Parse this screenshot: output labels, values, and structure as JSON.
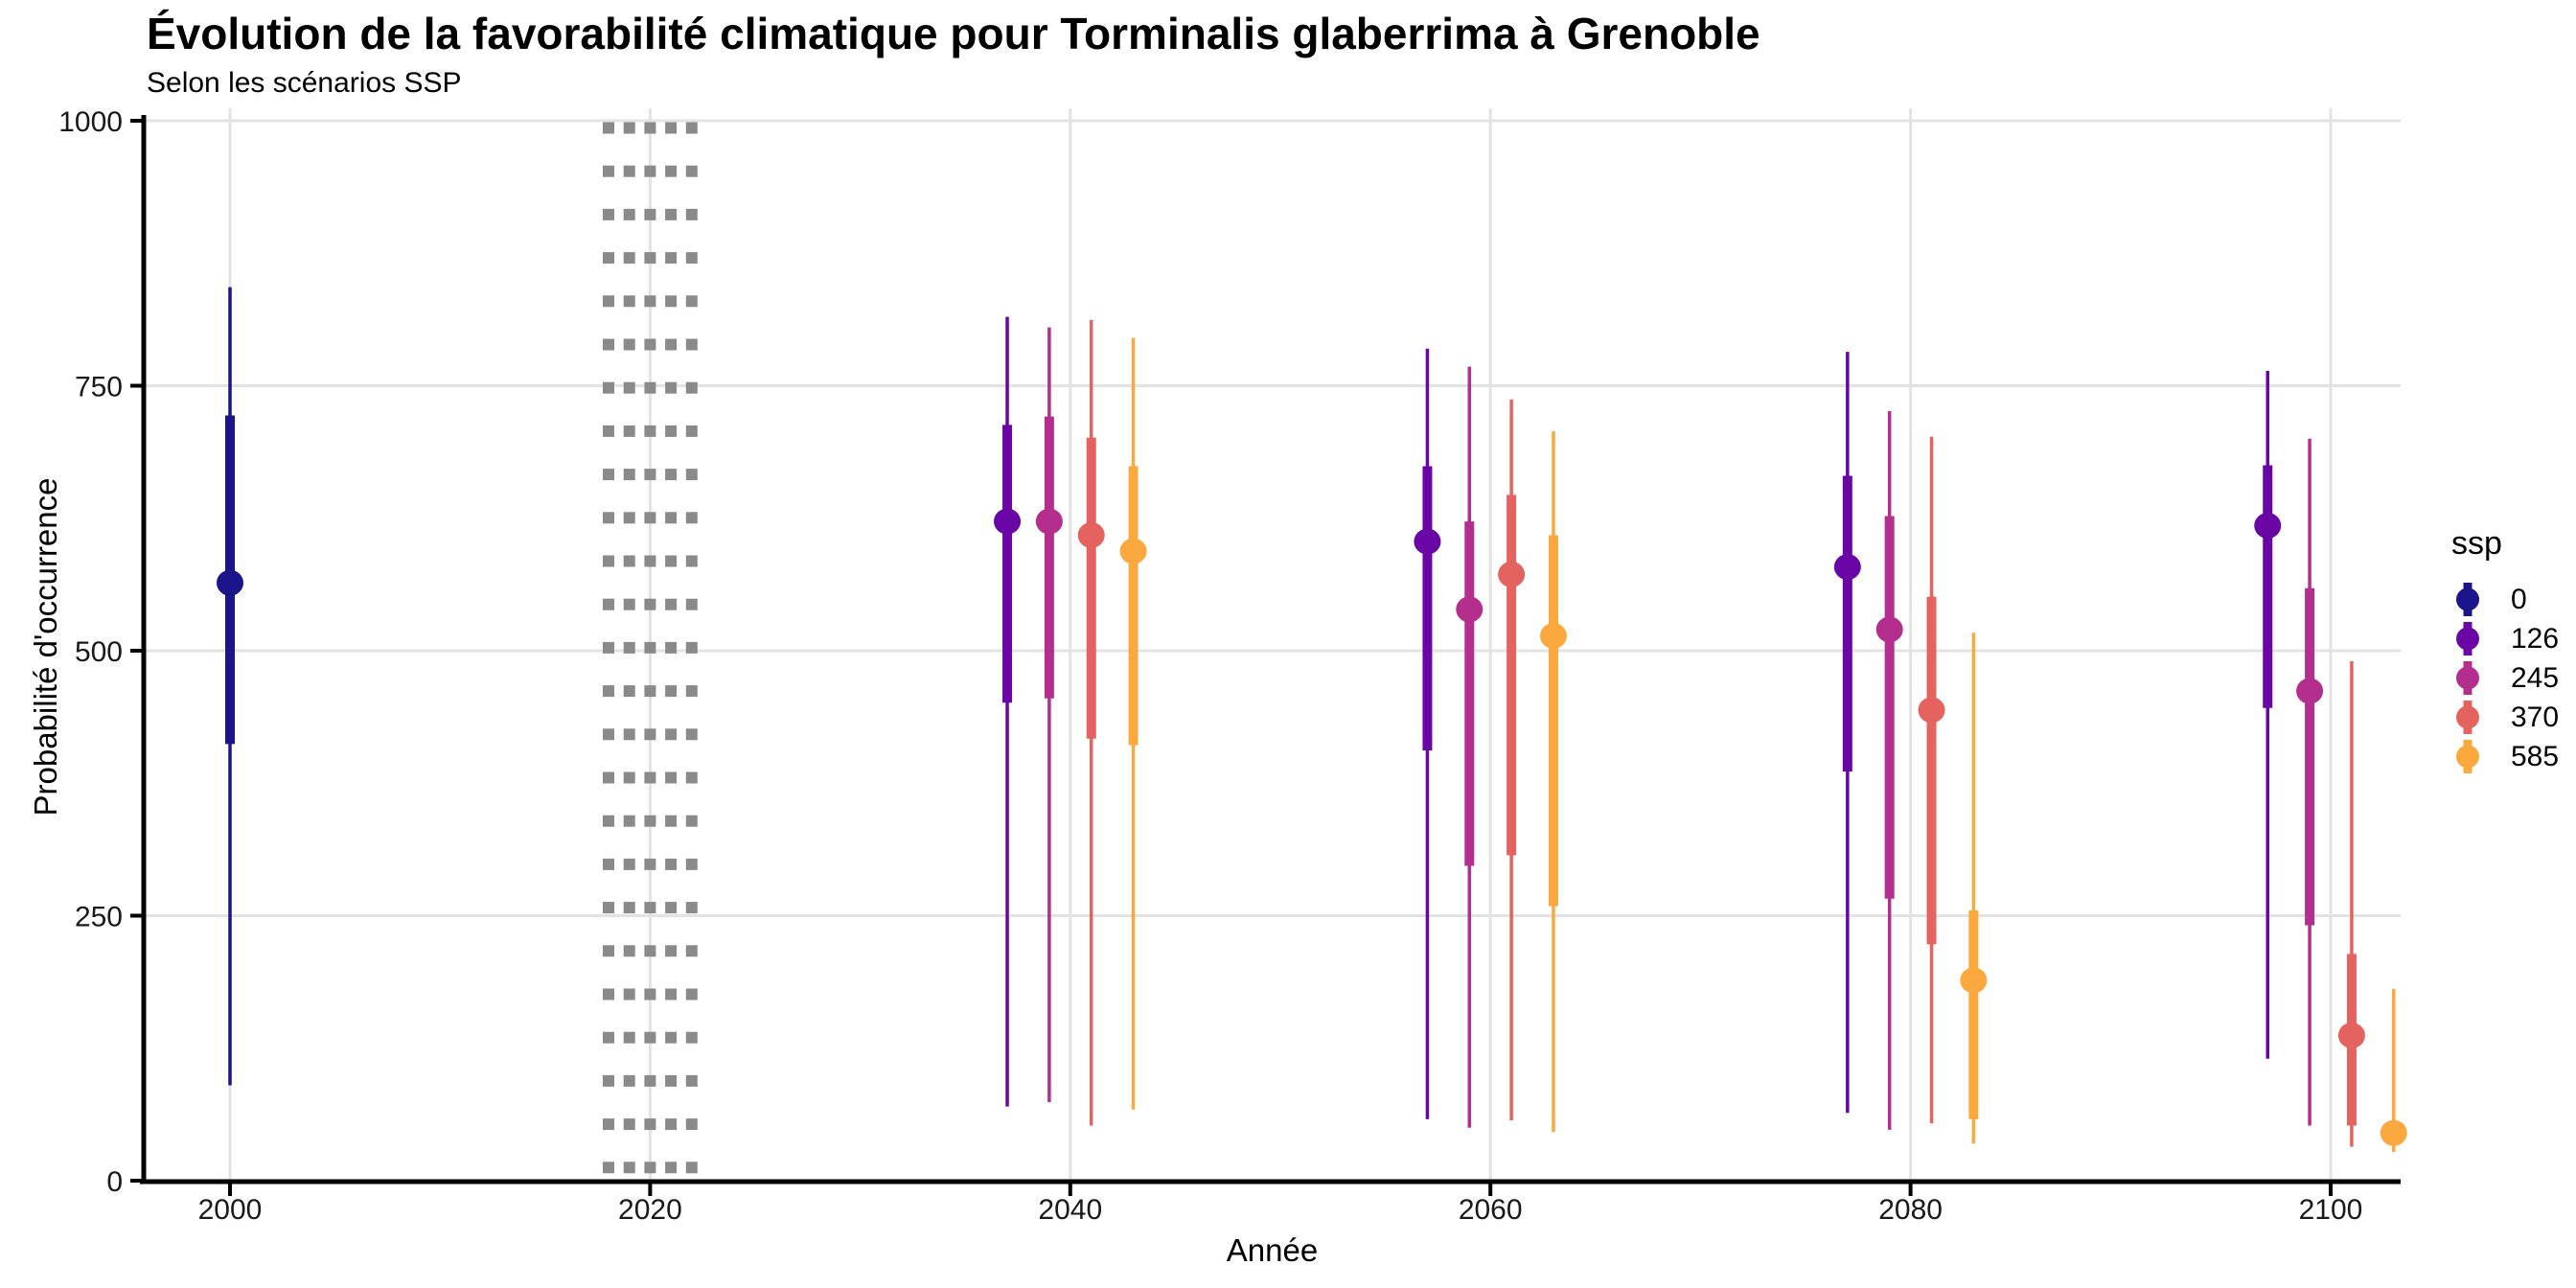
{
  "header": {
    "title": "Évolution de la favorabilité climatique pour Torminalis glaberrima à Grenoble",
    "subtitle": "Selon les scénarios SSP"
  },
  "axes": {
    "x": {
      "label": "Année",
      "ticks": [
        "2000",
        "2020",
        "2040",
        "2060",
        "2080",
        "2100"
      ]
    },
    "y": {
      "label": "Probabilité d'occurrence",
      "ticks": [
        "0",
        "250",
        "500",
        "750",
        "1000"
      ]
    }
  },
  "legend": {
    "title": "ssp",
    "entries": [
      {
        "label": "0",
        "color": "#1B148B"
      },
      {
        "label": "126",
        "color": "#6A06A6"
      },
      {
        "label": "245",
        "color": "#B42E8D"
      },
      {
        "label": "370",
        "color": "#E4635F"
      },
      {
        "label": "585",
        "color": "#FBA93F"
      }
    ]
  },
  "chart_data": {
    "type": "pointrange",
    "title": "Évolution de la favorabilité climatique pour Torminalis glaberrima à Grenoble",
    "subtitle": "Selon les scénarios SSP",
    "xlabel": "Année",
    "ylabel": "Probabilité d'occurrence",
    "ylim": [
      0,
      1000
    ],
    "xlim": [
      1996,
      2103
    ],
    "x_ticks": [
      2000,
      2020,
      2040,
      2060,
      2080,
      2100
    ],
    "y_ticks": [
      0,
      250,
      500,
      750,
      1000
    ],
    "grid": true,
    "gridline_color": "#E3E3E3",
    "legend_position": "right",
    "reference_band": {
      "x_center": 2020,
      "x_start": 2018,
      "x_end": 2022,
      "style": "dotted-squares",
      "color": "#8A8A8A"
    },
    "series": [
      {
        "name": "0",
        "color": "#1B148B",
        "points": [
          {
            "x": 2000,
            "y": 564,
            "inner": [
              412,
              722
            ],
            "outer": [
              90,
              843
            ]
          }
        ]
      },
      {
        "name": "126",
        "color": "#6A06A6",
        "points": [
          {
            "x": 2037,
            "y": 622,
            "inner": [
              451,
              713
            ],
            "outer": [
              70,
              815
            ]
          },
          {
            "x": 2057,
            "y": 603,
            "inner": [
              406,
              674
            ],
            "outer": [
              58,
              785
            ]
          },
          {
            "x": 2077,
            "y": 579,
            "inner": [
              386,
              665
            ],
            "outer": [
              64,
              782
            ]
          },
          {
            "x": 2097,
            "y": 618,
            "inner": [
              446,
              675
            ],
            "outer": [
              115,
              764
            ]
          }
        ]
      },
      {
        "name": "245",
        "color": "#B42E8D",
        "points": [
          {
            "x": 2039,
            "y": 622,
            "inner": [
              455,
              721
            ],
            "outer": [
              74,
              805
            ]
          },
          {
            "x": 2059,
            "y": 539,
            "inner": [
              297,
              622
            ],
            "outer": [
              50,
              768
            ]
          },
          {
            "x": 2079,
            "y": 520,
            "inner": [
              266,
              627
            ],
            "outer": [
              48,
              726
            ]
          },
          {
            "x": 2099,
            "y": 462,
            "inner": [
              241,
              559
            ],
            "outer": [
              52,
              700
            ]
          }
        ]
      },
      {
        "name": "370",
        "color": "#E4635F",
        "points": [
          {
            "x": 2041,
            "y": 609,
            "inner": [
              417,
              701
            ],
            "outer": [
              52,
              812
            ]
          },
          {
            "x": 2061,
            "y": 572,
            "inner": [
              307,
              647
            ],
            "outer": [
              57,
              737
            ]
          },
          {
            "x": 2081,
            "y": 444,
            "inner": [
              223,
              551
            ],
            "outer": [
              54,
              702
            ]
          },
          {
            "x": 2101,
            "y": 137,
            "inner": [
              52,
              214
            ],
            "outer": [
              32,
              490
            ]
          }
        ]
      },
      {
        "name": "585",
        "color": "#FBA93F",
        "points": [
          {
            "x": 2043,
            "y": 594,
            "inner": [
              411,
              674
            ],
            "outer": [
              67,
              795
            ]
          },
          {
            "x": 2063,
            "y": 514,
            "inner": [
              259,
              609
            ],
            "outer": [
              46,
              707
            ]
          },
          {
            "x": 2083,
            "y": 189,
            "inner": [
              58,
              255
            ],
            "outer": [
              35,
              517
            ]
          },
          {
            "x": 2103,
            "y": 45,
            "inner": [
              36,
              56
            ],
            "outer": [
              27,
              181
            ]
          }
        ]
      }
    ]
  }
}
